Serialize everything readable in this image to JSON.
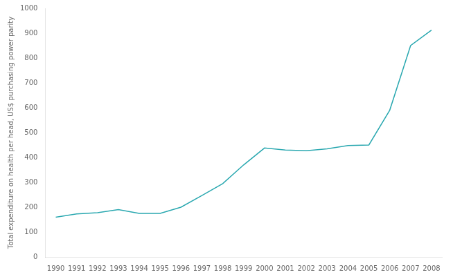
{
  "chart_data": {
    "type": "line",
    "ylabel": "Total expenditure on health per head, US$ purchasing power parity",
    "x": [
      1990,
      1991,
      1992,
      1993,
      1994,
      1995,
      1996,
      1997,
      1998,
      1999,
      2000,
      2001,
      2002,
      2003,
      2004,
      2005,
      2006,
      2007,
      2008
    ],
    "values": [
      160,
      173,
      178,
      190,
      175,
      175,
      200,
      247,
      295,
      370,
      438,
      430,
      427,
      435,
      448,
      450,
      590,
      850,
      912
    ],
    "color": "#2aa8b0",
    "xlim": [
      1989.5,
      2008.5
    ],
    "xticks": [
      1990,
      1991,
      1992,
      1993,
      1994,
      1995,
      1996,
      1997,
      1998,
      1999,
      2000,
      2001,
      2002,
      2003,
      2004,
      2005,
      2006,
      2007,
      2008
    ],
    "ylim": [
      0,
      1000
    ],
    "yticks": [
      0,
      100,
      200,
      300,
      400,
      500,
      600,
      700,
      800,
      900,
      1000
    ],
    "grid": false
  }
}
